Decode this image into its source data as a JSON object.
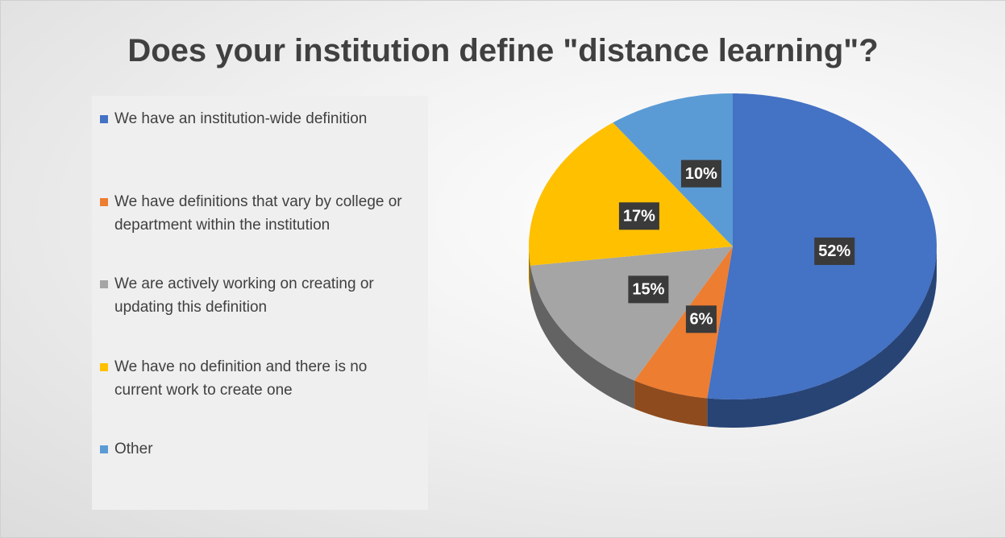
{
  "chart_data": {
    "type": "pie",
    "title": "Does your institution define \"distance learning\"?",
    "categories": [
      "We have an institution-wide definition",
      "We have definitions that vary by college or department within the institution",
      "We are actively working on creating or updating this definition",
      "We have no definition and there is no current work to create one",
      "Other"
    ],
    "values": [
      52,
      6,
      15,
      17,
      10
    ],
    "value_labels": [
      "52%",
      "6%",
      "15%",
      "17%",
      "10%"
    ],
    "colors": [
      "#4472c4",
      "#ed7d31",
      "#a5a5a5",
      "#ffc000",
      "#5b9bd5"
    ],
    "legend": "left"
  }
}
